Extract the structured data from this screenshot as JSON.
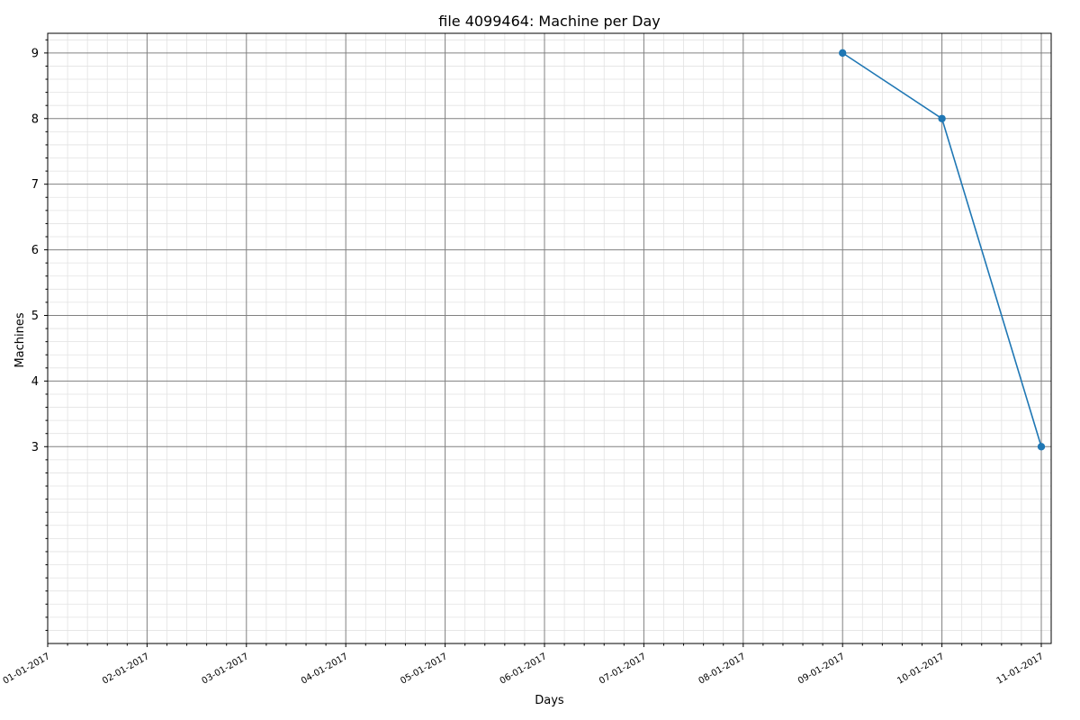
{
  "chart_data": {
    "type": "line",
    "title": "file 4099464: Machine per Day",
    "xlabel": "Days",
    "ylabel": "Machines",
    "x_ticks": [
      "01-01-2017",
      "02-01-2017",
      "03-01-2017",
      "04-01-2017",
      "05-01-2017",
      "06-01-2017",
      "07-01-2017",
      "08-01-2017",
      "09-01-2017",
      "10-01-2017",
      "11-01-2017"
    ],
    "y_ticks": [
      3,
      4,
      5,
      6,
      7,
      8,
      9
    ],
    "ylim": [
      0,
      9.3
    ],
    "grid": true,
    "minor_grid": true,
    "series": [
      {
        "color": "#1f77b4",
        "x": [
          "09-01-2017",
          "10-01-2017",
          "11-01-2017"
        ],
        "values": [
          9,
          8,
          3
        ]
      }
    ]
  }
}
